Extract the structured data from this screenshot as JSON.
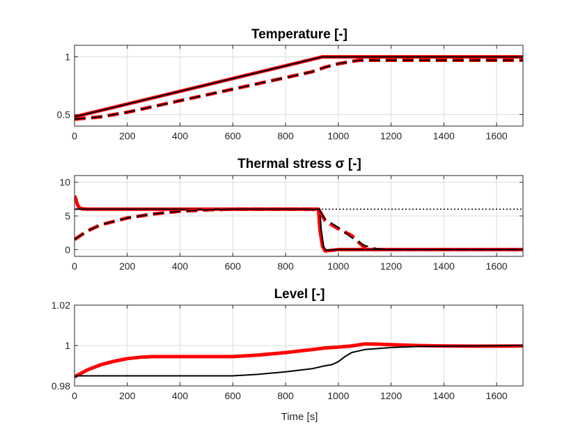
{
  "chart_data": [
    {
      "type": "line",
      "title": "Temperature [-]",
      "xlabel": "",
      "ylabel": "",
      "xlim": [
        0,
        1700
      ],
      "ylim": [
        0.4,
        1.1
      ],
      "xticks": [
        0,
        200,
        400,
        600,
        800,
        1000,
        1200,
        1400,
        1600
      ],
      "xticklabels": [
        "0",
        "200",
        "400",
        "600",
        "800",
        "1000",
        "1200",
        "1400",
        "1600"
      ],
      "yticks": [
        0.5,
        1
      ],
      "yticklabels": [
        "0.5",
        "1"
      ],
      "series": [
        {
          "name": "red-solid",
          "color": "#ff0000",
          "style": "solid",
          "width": 5,
          "x": [
            0,
            940,
            1700
          ],
          "y": [
            0.48,
            1.0,
            1.0
          ]
        },
        {
          "name": "black-solid",
          "color": "#000000",
          "style": "solid",
          "width": 2,
          "x": [
            0,
            940,
            1700
          ],
          "y": [
            0.48,
            1.0,
            1.0
          ]
        },
        {
          "name": "red-dashed",
          "color": "#ff0000",
          "style": "dashed",
          "width": 5,
          "x": [
            0,
            100,
            200,
            400,
            600,
            800,
            900,
            950,
            1000,
            1050,
            1080,
            1700
          ],
          "y": [
            0.46,
            0.48,
            0.52,
            0.62,
            0.72,
            0.82,
            0.87,
            0.91,
            0.94,
            0.96,
            0.97,
            0.97
          ]
        },
        {
          "name": "black-dashed",
          "color": "#000000",
          "style": "dashed",
          "width": 2,
          "x": [
            0,
            100,
            200,
            400,
            600,
            800,
            900,
            950,
            1000,
            1050,
            1080,
            1700
          ],
          "y": [
            0.46,
            0.48,
            0.52,
            0.62,
            0.72,
            0.82,
            0.87,
            0.91,
            0.94,
            0.96,
            0.97,
            0.97
          ]
        }
      ]
    },
    {
      "type": "line",
      "title": "Thermal stress σ [-]",
      "xlabel": "",
      "ylabel": "",
      "xlim": [
        0,
        1700
      ],
      "ylim": [
        -1,
        11
      ],
      "xticks": [
        0,
        200,
        400,
        600,
        800,
        1000,
        1200,
        1400,
        1600
      ],
      "xticklabels": [
        "0",
        "200",
        "400",
        "600",
        "800",
        "1000",
        "1200",
        "1400",
        "1600"
      ],
      "yticks": [
        0,
        5,
        10
      ],
      "yticklabels": [
        "0",
        "5",
        "10"
      ],
      "series": [
        {
          "name": "limit-dotted",
          "color": "#000000",
          "style": "dotted",
          "width": 1.5,
          "x": [
            0,
            1700
          ],
          "y": [
            6,
            6
          ]
        },
        {
          "name": "red-solid",
          "color": "#ff0000",
          "style": "solid",
          "width": 5,
          "x": [
            0,
            5,
            10,
            15,
            20,
            30,
            50,
            100,
            925,
            930,
            940,
            950,
            1000,
            1700
          ],
          "y": [
            8,
            7.5,
            6.8,
            6.4,
            6.2,
            6.05,
            6.0,
            6.0,
            6.0,
            3.0,
            0.5,
            -0.2,
            0.0,
            0.0
          ]
        },
        {
          "name": "black-solid",
          "color": "#000000",
          "style": "solid",
          "width": 2,
          "x": [
            0,
            930,
            935,
            945,
            955,
            1000,
            1700
          ],
          "y": [
            6.0,
            6.0,
            3.0,
            0.3,
            -0.1,
            0.0,
            0.0
          ]
        },
        {
          "name": "red-dashed",
          "color": "#ff0000",
          "style": "dashed",
          "width": 5,
          "x": [
            0,
            50,
            100,
            200,
            300,
            400,
            500,
            600,
            900,
            930,
            950,
            1000,
            1050,
            1080,
            1100,
            1130
          ],
          "y": [
            1.5,
            2.8,
            3.7,
            4.7,
            5.3,
            5.7,
            5.9,
            6.0,
            6.0,
            5.7,
            4.3,
            3.1,
            2.1,
            1.0,
            0.3,
            0.0
          ]
        },
        {
          "name": "black-dashed",
          "color": "#000000",
          "style": "dashed",
          "width": 2,
          "x": [
            0,
            50,
            100,
            200,
            300,
            400,
            500,
            600,
            900,
            930,
            950,
            1000,
            1050,
            1100,
            1150,
            1200,
            1700
          ],
          "y": [
            1.5,
            2.8,
            3.7,
            4.7,
            5.3,
            5.7,
            5.9,
            6.0,
            6.0,
            5.8,
            4.5,
            3.3,
            1.8,
            0.6,
            0.1,
            0.0,
            0.0
          ]
        }
      ]
    },
    {
      "type": "line",
      "title": "Level [-]",
      "xlabel": "Time [s]",
      "ylabel": "",
      "xlim": [
        0,
        1700
      ],
      "ylim": [
        0.98,
        1.02
      ],
      "xticks": [
        0,
        200,
        400,
        600,
        800,
        1000,
        1200,
        1400,
        1600
      ],
      "xticklabels": [
        "0",
        "200",
        "400",
        "600",
        "800",
        "1000",
        "1200",
        "1400",
        "1600"
      ],
      "yticks": [
        0.98,
        1,
        1.02
      ],
      "yticklabels": [
        "0.98",
        "1",
        "1.02"
      ],
      "series": [
        {
          "name": "red-solid",
          "color": "#ff0000",
          "style": "solid",
          "width": 5,
          "x": [
            0,
            50,
            100,
            150,
            200,
            250,
            300,
            400,
            500,
            600,
            700,
            800,
            900,
            950,
            1000,
            1050,
            1100,
            1150,
            1200,
            1300,
            1400,
            1500,
            1600,
            1700
          ],
          "y": [
            0.9845,
            0.988,
            0.9905,
            0.9922,
            0.9935,
            0.9942,
            0.9945,
            0.9945,
            0.9945,
            0.9945,
            0.9953,
            0.9965,
            0.998,
            0.9988,
            0.9992,
            0.9998,
            1.0008,
            1.0007,
            1.0004,
            1.0,
            0.9998,
            0.9997,
            0.9997,
            0.9998
          ]
        },
        {
          "name": "black-solid",
          "color": "#000000",
          "style": "solid",
          "width": 2,
          "x": [
            0,
            10,
            100,
            300,
            600,
            700,
            800,
            900,
            950,
            975,
            1000,
            1025,
            1050,
            1100,
            1200,
            1300,
            1400,
            1500,
            1600,
            1700
          ],
          "y": [
            0.9845,
            0.985,
            0.985,
            0.985,
            0.985,
            0.9858,
            0.987,
            0.9885,
            0.99,
            0.9905,
            0.992,
            0.9945,
            0.9965,
            0.998,
            0.999,
            0.9995,
            0.9997,
            0.9998,
            0.9999,
            1.0
          ]
        }
      ]
    }
  ]
}
